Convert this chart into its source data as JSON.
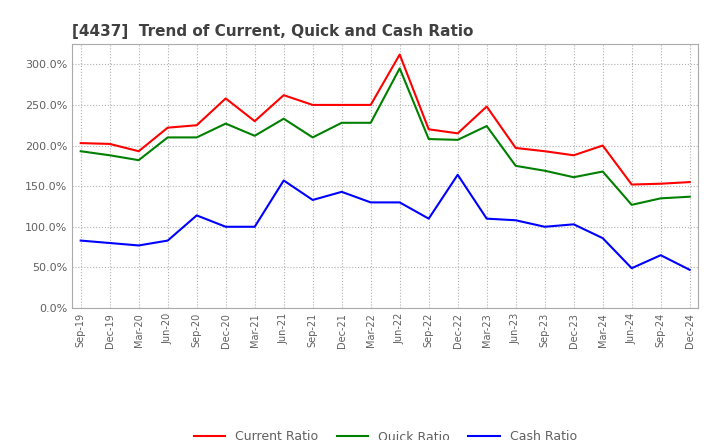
{
  "title": "[4437]  Trend of Current, Quick and Cash Ratio",
  "x_labels": [
    "Sep-19",
    "Dec-19",
    "Mar-20",
    "Jun-20",
    "Sep-20",
    "Dec-20",
    "Mar-21",
    "Jun-21",
    "Sep-21",
    "Dec-21",
    "Mar-22",
    "Jun-22",
    "Sep-22",
    "Dec-22",
    "Mar-23",
    "Jun-23",
    "Sep-23",
    "Dec-23",
    "Mar-24",
    "Jun-24",
    "Sep-24",
    "Dec-24"
  ],
  "current_ratio": [
    203,
    202,
    193,
    222,
    225,
    258,
    230,
    262,
    250,
    250,
    250,
    312,
    220,
    215,
    248,
    197,
    193,
    188,
    200,
    152,
    153,
    155
  ],
  "quick_ratio": [
    193,
    188,
    182,
    210,
    210,
    227,
    212,
    233,
    210,
    228,
    228,
    295,
    208,
    207,
    224,
    175,
    169,
    161,
    168,
    127,
    135,
    137
  ],
  "cash_ratio": [
    83,
    80,
    77,
    83,
    114,
    100,
    100,
    157,
    133,
    143,
    130,
    130,
    110,
    164,
    110,
    108,
    100,
    103,
    86,
    49,
    65,
    47
  ],
  "ylim": [
    0,
    325
  ],
  "yticks": [
    0,
    50,
    100,
    150,
    200,
    250,
    300
  ],
  "current_color": "#ff0000",
  "quick_color": "#008000",
  "cash_color": "#0000ff",
  "bg_color": "#ffffff",
  "grid_color": "#b0b0b0",
  "title_color": "#404040",
  "label_color": "#606060"
}
